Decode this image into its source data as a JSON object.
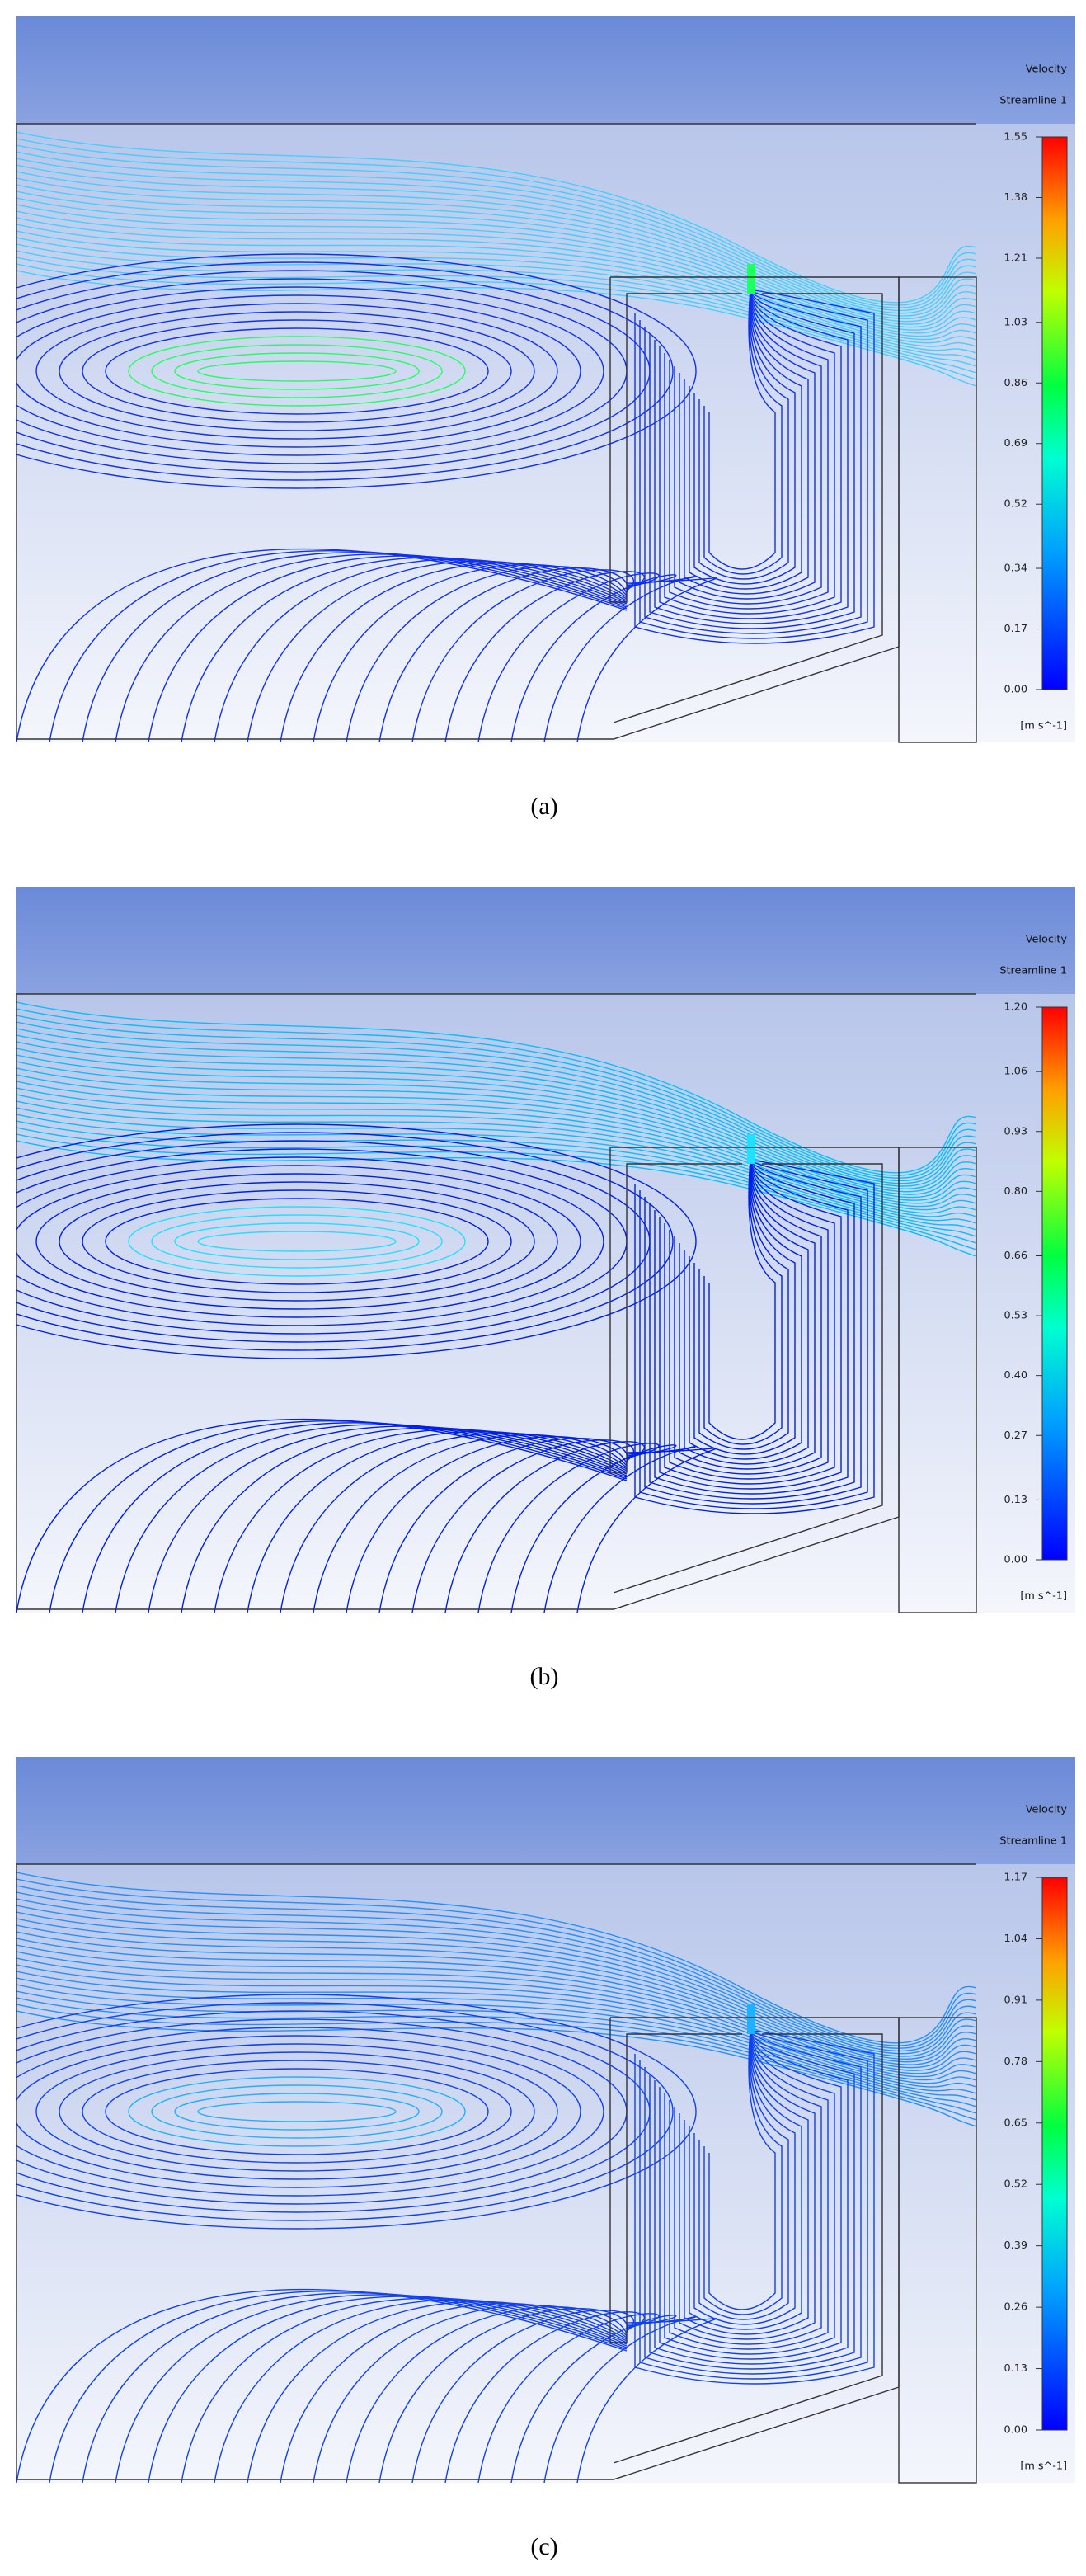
{
  "panels": [
    {
      "title": "Velocity",
      "subtitle": "Streamline 1",
      "caption": "(a)",
      "colorbar": {
        "clim": [
          0,
          1.55
        ],
        "unit": "[m s^-1]",
        "ticks": [
          {
            "value": 0,
            "label": "0.00"
          },
          {
            "value": 0.17,
            "label": "0.17"
          },
          {
            "value": 0.34,
            "label": "0.34"
          },
          {
            "value": 0.52,
            "label": "0.52"
          },
          {
            "value": 0.69,
            "label": "0.69"
          },
          {
            "value": 0.86,
            "label": "0.86"
          },
          {
            "value": 1.03,
            "label": "1.03"
          },
          {
            "value": 1.21,
            "label": "1.21"
          },
          {
            "value": 1.38,
            "label": "1.38"
          },
          {
            "value": 1.55,
            "label": "1.55"
          }
        ]
      }
    },
    {
      "title": "Velocity",
      "subtitle": "Streamline 1",
      "caption": "(b)",
      "colorbar": {
        "clim": [
          0,
          1.2
        ],
        "unit": "[m s^-1]",
        "ticks": [
          {
            "value": 0,
            "label": "0.00"
          },
          {
            "value": 0.13,
            "label": "0.13"
          },
          {
            "value": 0.27,
            "label": "0.27"
          },
          {
            "value": 0.4,
            "label": "0.40"
          },
          {
            "value": 0.53,
            "label": "0.53"
          },
          {
            "value": 0.66,
            "label": "0.66"
          },
          {
            "value": 0.8,
            "label": "0.80"
          },
          {
            "value": 0.93,
            "label": "0.93"
          },
          {
            "value": 1.06,
            "label": "1.06"
          },
          {
            "value": 1.2,
            "label": "1.20"
          }
        ]
      }
    },
    {
      "title": "Velocity",
      "subtitle": "Streamline 1",
      "caption": "(c)",
      "colorbar": {
        "clim": [
          0,
          1.17
        ],
        "unit": "[m s^-1]",
        "ticks": [
          {
            "value": 0,
            "label": "0.00"
          },
          {
            "value": 0.13,
            "label": "0.13"
          },
          {
            "value": 0.26,
            "label": "0.26"
          },
          {
            "value": 0.39,
            "label": "0.39"
          },
          {
            "value": 0.52,
            "label": "0.52"
          },
          {
            "value": 0.65,
            "label": "0.65"
          },
          {
            "value": 0.78,
            "label": "0.78"
          },
          {
            "value": 0.91,
            "label": "0.91"
          },
          {
            "value": 1.04,
            "label": "1.04"
          },
          {
            "value": 1.17,
            "label": "1.17"
          }
        ]
      }
    }
  ]
}
